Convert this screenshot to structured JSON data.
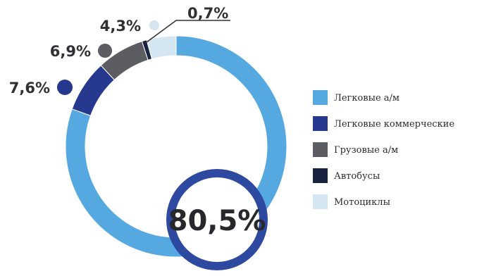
{
  "chart_data": {
    "type": "pie",
    "categories": [
      "Легковые а/м",
      "Легковые коммерческие",
      "Грузовые а/м",
      "Автобусы",
      "Мотоциклы"
    ],
    "values": [
      80.5,
      7.6,
      6.9,
      0.7,
      4.3
    ],
    "value_labels": [
      "80,5%",
      "7,6%",
      "6,9%",
      "0,7%",
      "4,3%"
    ],
    "colors": [
      "#56a9e0",
      "#27388f",
      "#5c5d63",
      "#172341",
      "#d3e6f1"
    ],
    "legend_position": "right"
  }
}
